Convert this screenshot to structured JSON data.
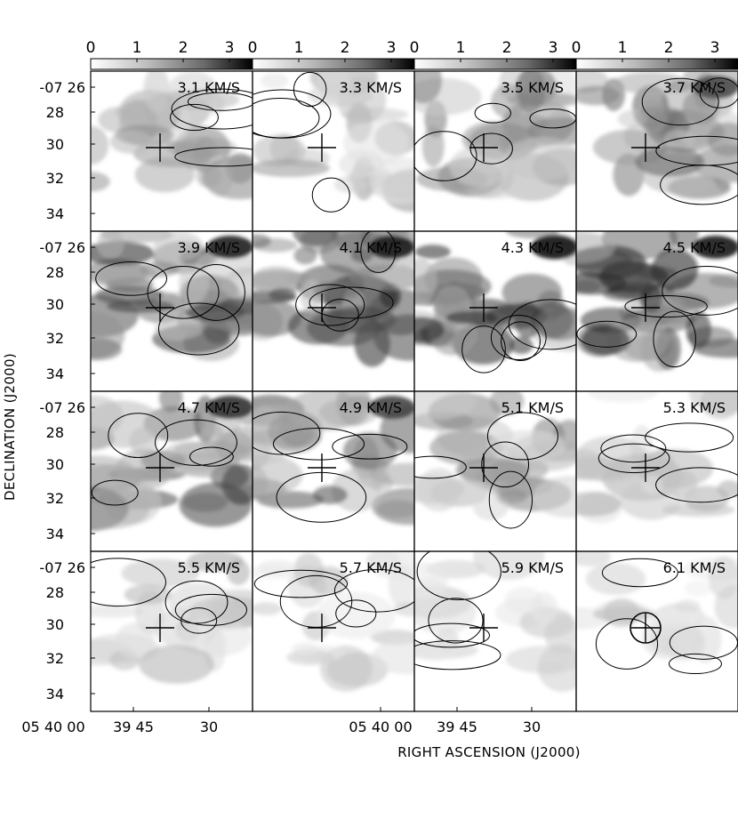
{
  "chart_data": {
    "type": "heatmap",
    "xlabel": "RIGHT ASCENSION (J2000)",
    "ylabel": "DECLINATION (J2000)",
    "colorbar": {
      "ticks": [
        "0",
        "1",
        "2",
        "3"
      ],
      "range": [
        0,
        3.5
      ],
      "colormap": "greyscale"
    },
    "x_ticks": [
      "05 40 00",
      "39 45",
      "30"
    ],
    "y_ticks": [
      "-07 26",
      "28",
      "30",
      "32",
      "34"
    ],
    "x_ticks_right": [
      "05 40 00",
      "39 45",
      "30"
    ],
    "x_range_arcmin": [
      0,
      1
    ],
    "dec_range_arcmin": [
      25.5,
      35.5
    ],
    "center_marker": {
      "dec": "-07 30"
    },
    "grid": false,
    "rows": 4,
    "cols": 4,
    "panels": [
      {
        "label": "3.1 KM/S",
        "intensity_max": 1.9
      },
      {
        "label": "3.3 KM/S",
        "intensity_max": 1.6
      },
      {
        "label": "3.5 KM/S",
        "intensity_max": 2.1
      },
      {
        "label": "3.7 KM/S",
        "intensity_max": 2.6
      },
      {
        "label": "3.9 KM/S",
        "intensity_max": 3.3
      },
      {
        "label": "4.1 KM/S",
        "intensity_max": 3.3
      },
      {
        "label": "4.3 KM/S",
        "intensity_max": 3.3
      },
      {
        "label": "4.5 KM/S",
        "intensity_max": 3.4
      },
      {
        "label": "4.7 KM/S",
        "intensity_max": 3.0
      },
      {
        "label": "4.9 KM/S",
        "intensity_max": 2.7
      },
      {
        "label": "5.1 KM/S",
        "intensity_max": 1.9
      },
      {
        "label": "5.3 KM/S",
        "intensity_max": 1.4
      },
      {
        "label": "5.5 KM/S",
        "intensity_max": 1.3
      },
      {
        "label": "5.7 KM/S",
        "intensity_max": 1.1
      },
      {
        "label": "5.9 KM/S",
        "intensity_max": 0.9
      },
      {
        "label": "6.1 KM/S",
        "intensity_max": 1.0
      }
    ],
    "beam_marker_panel": "6.1 KM/S"
  }
}
